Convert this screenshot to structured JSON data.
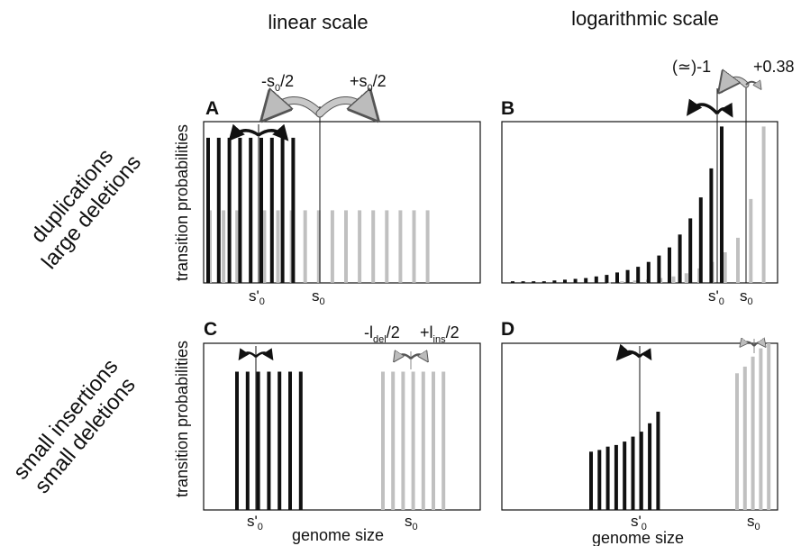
{
  "column_titles": {
    "linear": "linear scale",
    "log": "logarithmic scale"
  },
  "row_labels": {
    "top": {
      "line1": "duplications",
      "line2": "large deletions"
    },
    "bottom": {
      "line1": "small insertions",
      "line2": "small deletions"
    }
  },
  "y_axis_label": "transition probabilities",
  "x_axis_label": "genome size",
  "tick_labels": {
    "s_prime_base": "s'",
    "s_base": "s",
    "sub_zero": "0"
  },
  "colors": {
    "black_bars": "#111111",
    "gray_bars": "#c0c0c0",
    "arrow_gray": "#c8c8c8",
    "frame": "#111111"
  },
  "panels": {
    "A": {
      "letter": "A",
      "ann_left": {
        "pre": "-s",
        "sub": "0",
        "post": "/2"
      },
      "ann_right": {
        "pre": "+s",
        "sub": "0",
        "post": "/2"
      }
    },
    "B": {
      "letter": "B",
      "ann_left": "(≃)-1",
      "ann_right": "+0.38"
    },
    "C": {
      "letter": "C",
      "ann_left": {
        "pre": "-l",
        "sub": "del",
        "post": "/2"
      },
      "ann_right": {
        "pre": "+l",
        "sub": "ins",
        "post": "/2"
      }
    },
    "D": {
      "letter": "D"
    }
  },
  "chart_data": [
    {
      "panel": "A",
      "type": "bar",
      "series": [
        {
          "name": "",
          "color": "#111111",
          "values": [
            0.9,
            0.9,
            0.9,
            0.9,
            0.9,
            0.9,
            0.9,
            0.9,
            0.9
          ]
        },
        {
          "name": "",
          "color": "#c0c0c0",
          "values": [
            0.45,
            0.45,
            0.45,
            0.45,
            0.45,
            0.45,
            0.45,
            0.45,
            0.45,
            0.45,
            0.45,
            0.45,
            0.45,
            0.45,
            0.45,
            0.45,
            0.45
          ]
        }
      ],
      "ylim": [
        0,
        1
      ]
    },
    {
      "panel": "B",
      "type": "bar",
      "series": [
        {
          "name": "",
          "color": "#111111",
          "values": [
            0.01,
            0.01,
            0.01,
            0.01,
            0.015,
            0.02,
            0.025,
            0.03,
            0.04,
            0.05,
            0.065,
            0.08,
            0.1,
            0.13,
            0.17,
            0.22,
            0.3,
            0.4,
            0.53,
            0.71,
            0.97
          ]
        },
        {
          "name": "",
          "color": "#c0c0c0",
          "values": [
            0.005,
            0.01,
            0.015,
            0.02,
            0.03,
            0.04,
            0.06,
            0.09,
            0.13,
            0.19,
            0.28,
            0.52,
            0.97
          ]
        }
      ],
      "ylim": [
        0,
        1
      ]
    },
    {
      "panel": "C",
      "type": "bar",
      "series": [
        {
          "name": "",
          "color": "#111111",
          "values": [
            0.83,
            0.83,
            0.83,
            0.83,
            0.83,
            0.83,
            0.83
          ]
        },
        {
          "name": "",
          "color": "#c0c0c0",
          "values": [
            0.83,
            0.83,
            0.83,
            0.83,
            0.83,
            0.83,
            0.83
          ]
        }
      ],
      "ylim": [
        0,
        1
      ]
    },
    {
      "panel": "D",
      "type": "bar",
      "series": [
        {
          "name": "",
          "color": "#111111",
          "values": [
            0.35,
            0.36,
            0.38,
            0.39,
            0.41,
            0.44,
            0.47,
            0.52,
            0.59
          ]
        },
        {
          "name": "",
          "color": "#c0c0c0",
          "values": [
            0.82,
            0.86,
            0.92,
            0.97,
            1.0
          ]
        }
      ],
      "ylim": [
        0,
        1
      ]
    }
  ]
}
